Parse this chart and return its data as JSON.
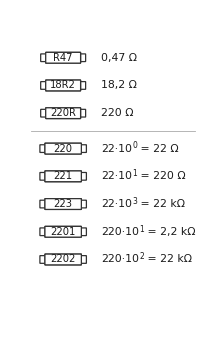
{
  "background_color": "#ffffff",
  "rows": [
    {
      "code": "R47",
      "base": "0,47 Ω",
      "sup": null,
      "rest": null,
      "style": "3band"
    },
    {
      "code": "18R2",
      "base": "18,2 Ω",
      "sup": null,
      "rest": null,
      "style": "3band"
    },
    {
      "code": "220R",
      "base": "220 Ω",
      "sup": null,
      "rest": null,
      "style": "3band"
    },
    {
      "code": "220",
      "base": "22·10",
      "sup": "0",
      "rest": " = 22 Ω",
      "style": "4band"
    },
    {
      "code": "221",
      "base": "22·10",
      "sup": "1",
      "rest": " = 220 Ω",
      "style": "4band"
    },
    {
      "code": "223",
      "base": "22·10",
      "sup": "3",
      "rest": " = 22 kΩ",
      "style": "4band"
    },
    {
      "code": "2201",
      "base": "220·10",
      "sup": "1",
      "rest": " = 2,2 kΩ",
      "style": "4band"
    },
    {
      "code": "2202",
      "base": "220·10",
      "sup": "2",
      "rest": " = 22 kΩ",
      "style": "4band"
    }
  ],
  "separator_after_row": 2,
  "text_color": "#1a1a1a",
  "box_edge_color": "#333333",
  "box_fill": "#ffffff",
  "font_size_code": 7.2,
  "font_size_formula": 7.8,
  "font_size_sup": 5.5
}
